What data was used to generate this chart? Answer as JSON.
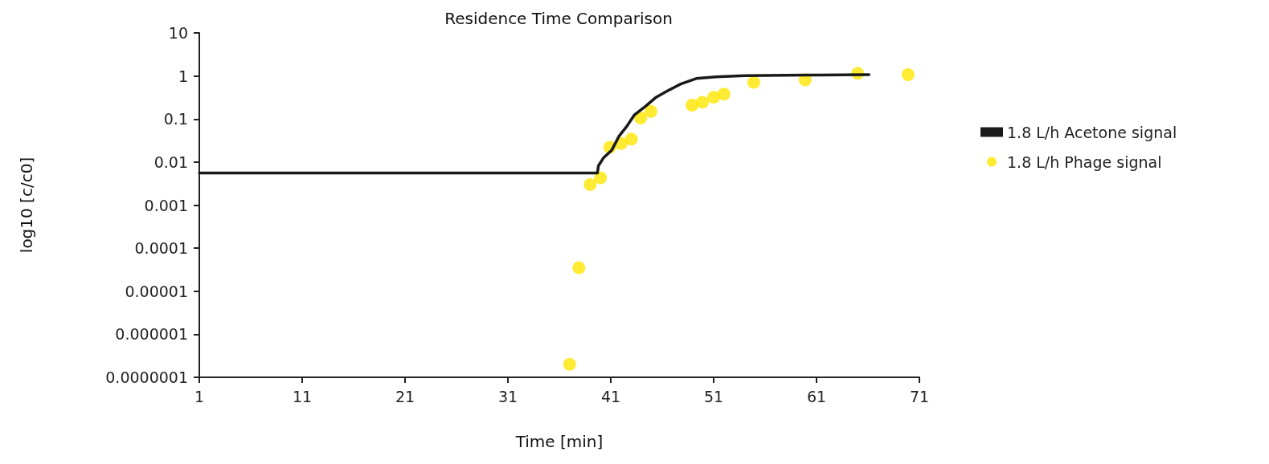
{
  "chart_data": {
    "type": "line",
    "title": "Residence Time Comparison",
    "xlabel": "Time [min]",
    "ylabel": "log10 [c/c0]",
    "xlim": [
      1,
      71
    ],
    "xticks": [
      1,
      11,
      21,
      31,
      41,
      51,
      61,
      71
    ],
    "ylim": [
      1e-07,
      10
    ],
    "yticks": [
      {
        "value": 1e-07,
        "label": "0.0000001"
      },
      {
        "value": 1e-06,
        "label": "0.000001"
      },
      {
        "value": 1e-05,
        "label": "0.00001"
      },
      0.0001,
      0.001,
      0.01,
      0.1,
      1,
      10
    ],
    "log": "y",
    "grid": false,
    "legend": "right",
    "series": [
      {
        "name": "1.8 L/h Acetone signal",
        "color": "#1a1a1a",
        "marker": "none",
        "line_style": "solid",
        "x": [
          1,
          39.7,
          39.8,
          40.3,
          41.1,
          41.8,
          42.6,
          43.3,
          44.4,
          45.4,
          46.5,
          47.8,
          49.3,
          51.2,
          54,
          60,
          66.1
        ],
        "values": [
          0.0056,
          0.0056,
          0.0082,
          0.0126,
          0.019,
          0.04,
          0.07,
          0.125,
          0.2,
          0.32,
          0.45,
          0.65,
          0.87,
          0.95,
          1.02,
          1.05,
          1.07
        ]
      },
      {
        "name": "1.8 L/h Phage signal",
        "type": "scatter",
        "color": "#ffe600",
        "marker": "circle",
        "x": [
          37,
          37.9,
          39,
          40,
          40.9,
          42,
          43,
          43.9,
          44.9,
          48.9,
          49.9,
          51,
          52,
          54.9,
          59.9,
          65,
          69.9
        ],
        "values": [
          2e-07,
          3.5e-05,
          0.003,
          0.0043,
          0.022,
          0.027,
          0.034,
          0.105,
          0.15,
          0.21,
          0.245,
          0.32,
          0.38,
          0.71,
          0.81,
          1.15,
          1.07
        ]
      }
    ]
  }
}
